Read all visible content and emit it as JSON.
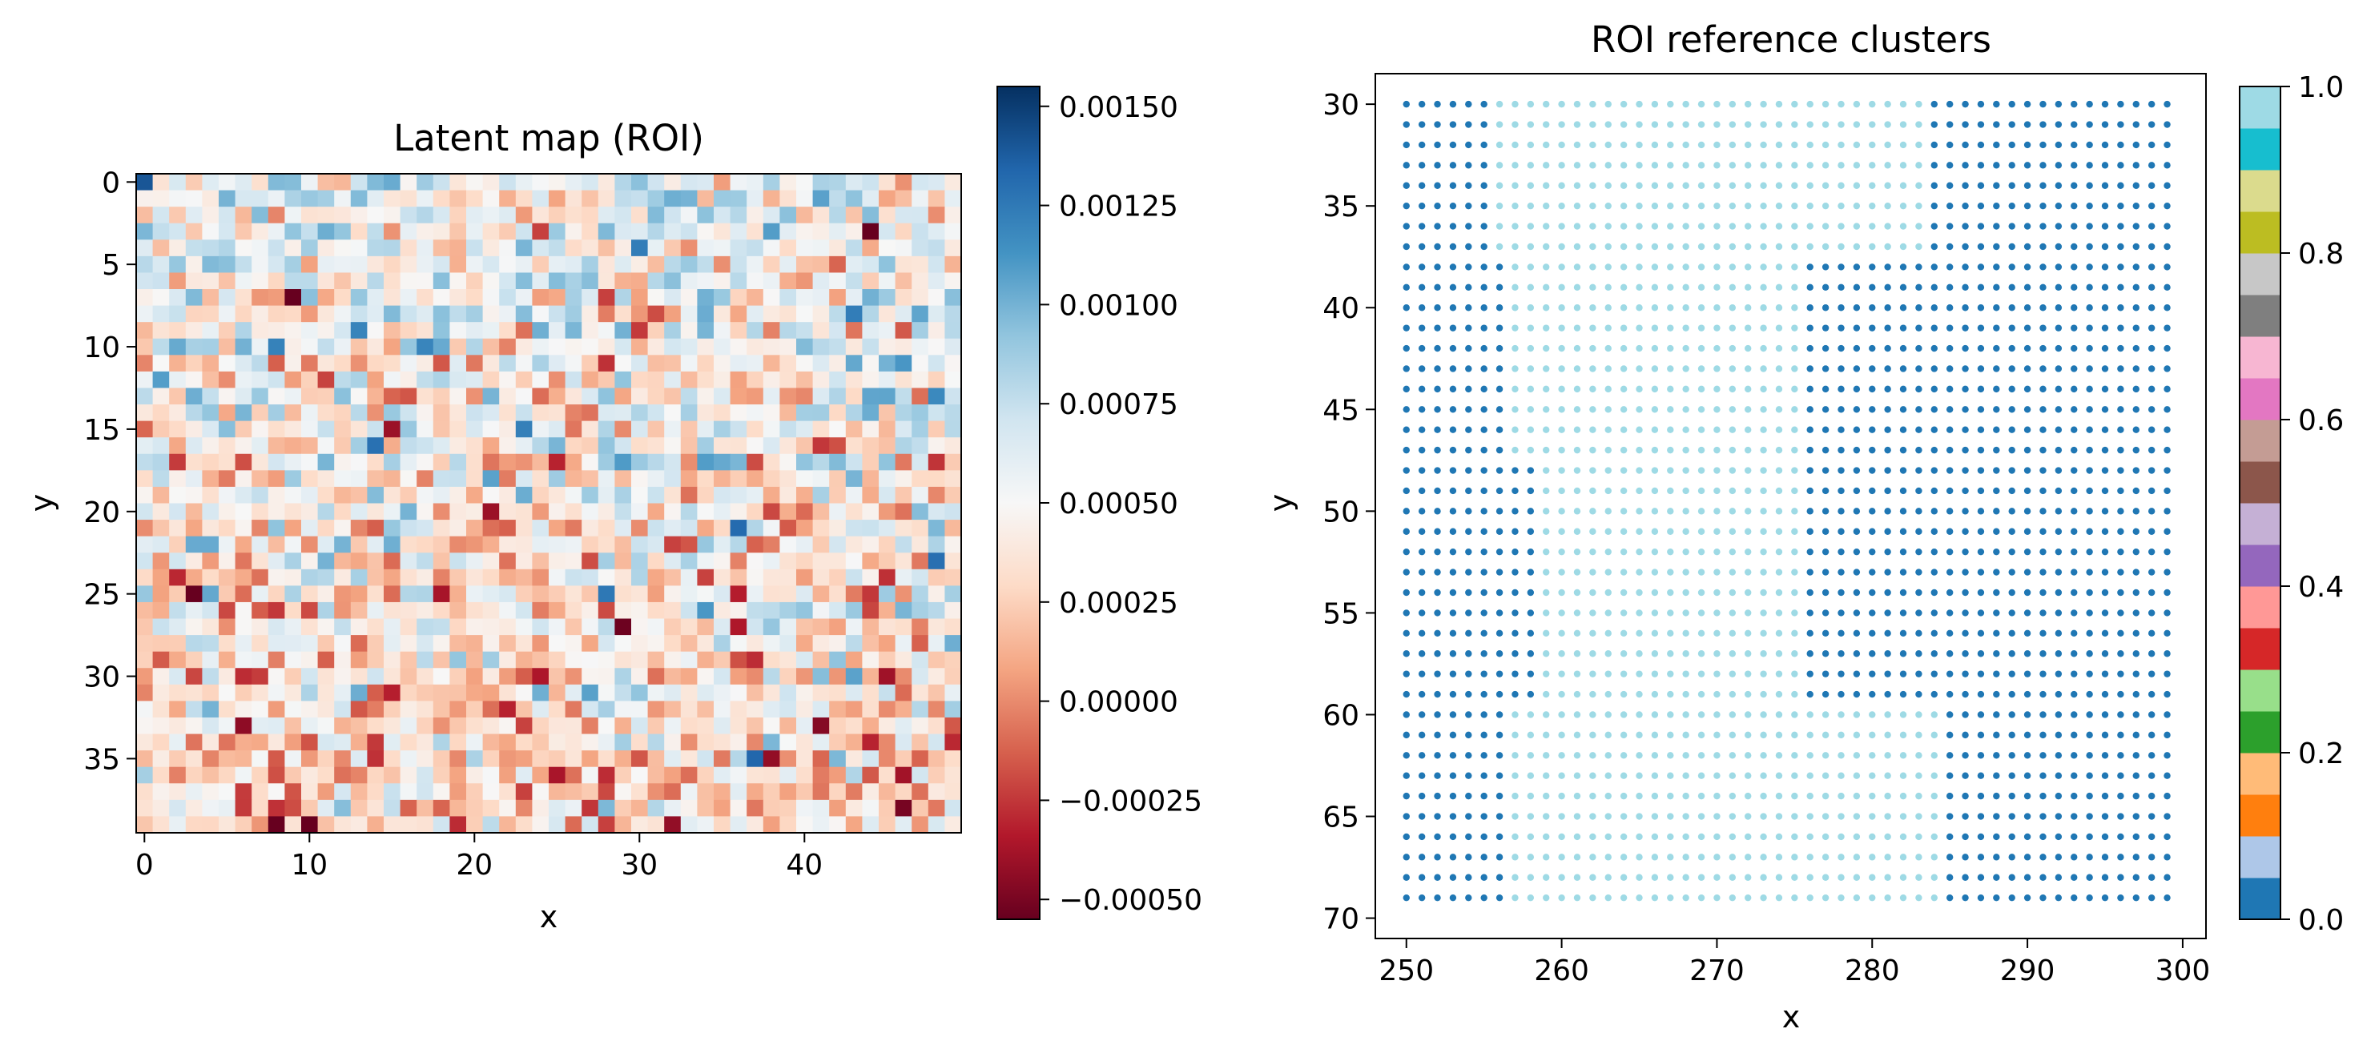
{
  "chart_data": [
    {
      "type": "heatmap",
      "title": "Latent map (ROI)",
      "xlabel": "x",
      "ylabel": "y",
      "grid_cols": 50,
      "grid_rows": 40,
      "x_range": [
        -0.5,
        49.5
      ],
      "y_range": [
        39.5,
        -0.5
      ],
      "xticks": [
        0,
        10,
        20,
        30,
        40
      ],
      "yticks": [
        0,
        5,
        10,
        15,
        20,
        25,
        30,
        35
      ],
      "colormap": "RdBu",
      "vmin": -0.00055,
      "vmax": 0.00155,
      "colorbar_ticks": [
        -0.0005,
        -0.00025,
        0.0,
        0.00025,
        0.0005,
        0.00075,
        0.001,
        0.00125,
        0.0015
      ],
      "colorbar_tick_labels": [
        "−0.00050",
        "−0.00025",
        "0.00000",
        "0.00025",
        "0.00050",
        "0.00075",
        "0.00100",
        "0.00125",
        "0.00150"
      ],
      "value_stats": {
        "distribution": "noisy random field",
        "mean": 0.00042,
        "std": 0.0003,
        "left_rows_bias": "slightly higher values near top, lower near bottom"
      }
    },
    {
      "type": "scatter",
      "title": "ROI reference clusters",
      "xlabel": "x",
      "ylabel": "y",
      "x_values_range": [
        250,
        299
      ],
      "y_values_range": [
        30,
        69
      ],
      "x_step": 1,
      "y_step": 1,
      "xlim": [
        248,
        301.5
      ],
      "ylim": [
        71,
        28.5
      ],
      "xticks": [
        250,
        260,
        270,
        280,
        290,
        300
      ],
      "yticks": [
        30,
        35,
        40,
        45,
        50,
        55,
        60,
        65,
        70
      ],
      "colormap": "tab20",
      "colorbar_range": [
        0.0,
        1.0
      ],
      "colorbar_ticks": [
        0.0,
        0.2,
        0.4,
        0.6,
        0.8,
        1.0
      ],
      "colorbar_tick_labels": [
        "0.0",
        "0.2",
        "0.4",
        "0.6",
        "0.8",
        "1.0"
      ],
      "clusters": [
        {
          "label_value": 0.0,
          "color": "#1f77b4"
        },
        {
          "label_value": 1.0,
          "color": "#9edae5"
        }
      ],
      "cluster_regions_by_row": [
        {
          "y_from": 30,
          "y_to": 37,
          "cluster0_x": [
            [
              250,
              255
            ],
            [
              284,
              299
            ]
          ]
        },
        {
          "y_from": 38,
          "y_to": 47,
          "cluster0_x": [
            [
              250,
              256
            ],
            [
              276,
              299
            ]
          ]
        },
        {
          "y_from": 48,
          "y_to": 59,
          "cluster0_x": [
            [
              250,
              258
            ],
            [
              276,
              299
            ]
          ]
        },
        {
          "y_from": 60,
          "y_to": 69,
          "cluster0_x": [
            [
              250,
              256
            ],
            [
              285,
              299
            ]
          ]
        }
      ]
    }
  ],
  "colors": {
    "tab20": [
      "#1f77b4",
      "#aec7e8",
      "#ff7f0e",
      "#ffbb78",
      "#2ca02c",
      "#98df8a",
      "#d62728",
      "#ff9896",
      "#9467bd",
      "#c5b0d5",
      "#8c564b",
      "#c49c94",
      "#e377c2",
      "#f7b6d2",
      "#7f7f7f",
      "#c7c7c7",
      "#bcbd22",
      "#dbdb8d",
      "#17becf",
      "#9edae5"
    ],
    "rdbu": [
      "#67001f",
      "#b2182b",
      "#d6604d",
      "#f4a582",
      "#fddbc7",
      "#f7f7f7",
      "#d1e5f0",
      "#92c5de",
      "#4393c3",
      "#2166ac",
      "#053061"
    ]
  }
}
